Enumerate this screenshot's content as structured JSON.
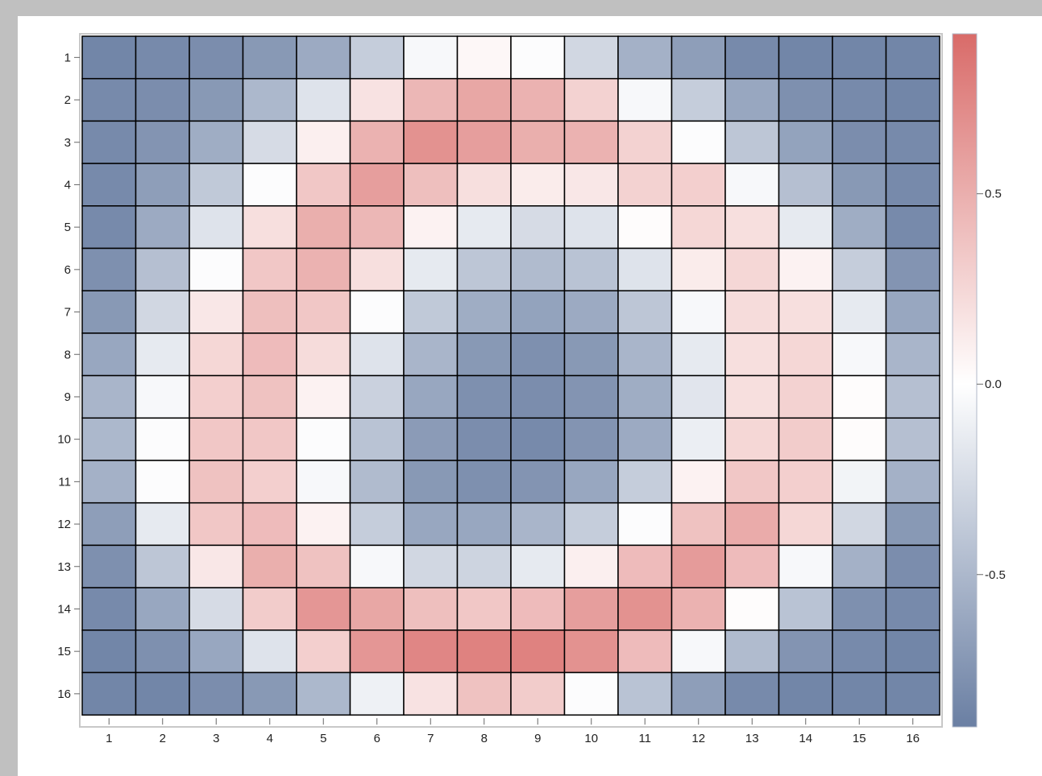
{
  "chart_data": {
    "type": "heatmap",
    "title": "",
    "xlabel": "",
    "ylabel": "",
    "x_categories": [
      "1",
      "2",
      "3",
      "4",
      "5",
      "6",
      "7",
      "8",
      "9",
      "10",
      "11",
      "12",
      "13",
      "14",
      "15",
      "16"
    ],
    "y_categories": [
      "1",
      "2",
      "3",
      "4",
      "5",
      "6",
      "7",
      "8",
      "9",
      "10",
      "11",
      "12",
      "13",
      "14",
      "15",
      "16"
    ],
    "values": [
      [
        -0.85,
        -0.82,
        -0.8,
        -0.72,
        -0.6,
        -0.35,
        -0.05,
        0.05,
        -0.02,
        -0.28,
        -0.55,
        -0.68,
        -0.82,
        -0.85,
        -0.85,
        -0.85
      ],
      [
        -0.82,
        -0.8,
        -0.72,
        -0.5,
        -0.2,
        0.18,
        0.45,
        0.55,
        0.48,
        0.28,
        -0.05,
        -0.35,
        -0.62,
        -0.78,
        -0.82,
        -0.85
      ],
      [
        -0.82,
        -0.75,
        -0.58,
        -0.25,
        0.1,
        0.48,
        0.68,
        0.6,
        0.5,
        0.48,
        0.28,
        -0.02,
        -0.4,
        -0.65,
        -0.8,
        -0.82
      ],
      [
        -0.82,
        -0.68,
        -0.38,
        -0.02,
        0.35,
        0.6,
        0.4,
        0.2,
        0.12,
        0.15,
        0.28,
        0.3,
        -0.05,
        -0.45,
        -0.72,
        -0.82
      ],
      [
        -0.82,
        -0.6,
        -0.2,
        0.2,
        0.5,
        0.45,
        0.08,
        -0.15,
        -0.25,
        -0.2,
        0.02,
        0.25,
        0.2,
        -0.15,
        -0.58,
        -0.82
      ],
      [
        -0.78,
        -0.45,
        -0.02,
        0.35,
        0.48,
        0.2,
        -0.15,
        -0.4,
        -0.48,
        -0.42,
        -0.2,
        0.12,
        0.25,
        0.08,
        -0.35,
        -0.75
      ],
      [
        -0.72,
        -0.28,
        0.15,
        0.4,
        0.35,
        -0.02,
        -0.38,
        -0.58,
        -0.65,
        -0.6,
        -0.4,
        -0.05,
        0.22,
        0.2,
        -0.15,
        -0.62
      ],
      [
        -0.62,
        -0.15,
        0.25,
        0.42,
        0.22,
        -0.2,
        -0.52,
        -0.72,
        -0.78,
        -0.72,
        -0.52,
        -0.15,
        0.2,
        0.25,
        -0.05,
        -0.52
      ],
      [
        -0.52,
        -0.05,
        0.3,
        0.38,
        0.08,
        -0.32,
        -0.62,
        -0.78,
        -0.8,
        -0.75,
        -0.58,
        -0.18,
        0.2,
        0.28,
        0.02,
        -0.45
      ],
      [
        -0.5,
        -0.02,
        0.35,
        0.35,
        -0.02,
        -0.42,
        -0.7,
        -0.8,
        -0.82,
        -0.75,
        -0.6,
        -0.12,
        0.25,
        0.32,
        0.02,
        -0.45
      ],
      [
        -0.55,
        -0.02,
        0.38,
        0.3,
        -0.05,
        -0.48,
        -0.72,
        -0.78,
        -0.75,
        -0.62,
        -0.35,
        0.08,
        0.35,
        0.3,
        -0.08,
        -0.55
      ],
      [
        -0.68,
        -0.15,
        0.35,
        0.42,
        0.08,
        -0.35,
        -0.62,
        -0.62,
        -0.52,
        -0.35,
        -0.02,
        0.38,
        0.52,
        0.25,
        -0.28,
        -0.72
      ],
      [
        -0.78,
        -0.4,
        0.15,
        0.5,
        0.38,
        -0.05,
        -0.28,
        -0.3,
        -0.15,
        0.1,
        0.42,
        0.62,
        0.42,
        -0.05,
        -0.55,
        -0.8
      ],
      [
        -0.82,
        -0.62,
        -0.25,
        0.32,
        0.65,
        0.55,
        0.4,
        0.35,
        0.42,
        0.6,
        0.68,
        0.48,
        0.02,
        -0.42,
        -0.78,
        -0.82
      ],
      [
        -0.85,
        -0.78,
        -0.62,
        -0.2,
        0.3,
        0.65,
        0.75,
        0.78,
        0.78,
        0.68,
        0.42,
        -0.05,
        -0.48,
        -0.75,
        -0.82,
        -0.85
      ],
      [
        -0.85,
        -0.85,
        -0.8,
        -0.72,
        -0.5,
        -0.1,
        0.18,
        0.38,
        0.32,
        -0.02,
        -0.42,
        -0.68,
        -0.82,
        -0.85,
        -0.85,
        -0.85
      ]
    ],
    "colorbar": {
      "min": -0.9,
      "max": 0.92,
      "ticks": [
        0.5,
        0.0,
        -0.5
      ],
      "tick_labels": [
        "0.5",
        "0.0",
        "-0.5"
      ],
      "colors": {
        "low": "#6a7fa3",
        "mid": "#ffffff",
        "high": "#d96b69"
      }
    },
    "grid": true,
    "legend_position": "right"
  }
}
